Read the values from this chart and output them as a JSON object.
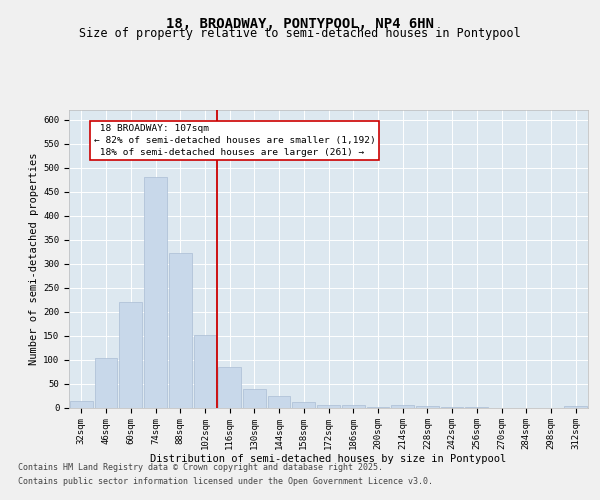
{
  "title": "18, BROADWAY, PONTYPOOL, NP4 6HN",
  "subtitle": "Size of property relative to semi-detached houses in Pontypool",
  "xlabel": "Distribution of semi-detached houses by size in Pontypool",
  "ylabel": "Number of semi-detached properties",
  "categories": [
    "32sqm",
    "46sqm",
    "60sqm",
    "74sqm",
    "88sqm",
    "102sqm",
    "116sqm",
    "130sqm",
    "144sqm",
    "158sqm",
    "172sqm",
    "186sqm",
    "200sqm",
    "214sqm",
    "228sqm",
    "242sqm",
    "256sqm",
    "270sqm",
    "284sqm",
    "298sqm",
    "312sqm"
  ],
  "values": [
    14,
    103,
    220,
    480,
    323,
    152,
    84,
    38,
    25,
    11,
    6,
    5,
    1,
    5,
    4,
    2,
    1,
    0,
    0,
    0,
    4
  ],
  "bar_color": "#c8d8ea",
  "bar_edge_color": "#aabdd4",
  "property_sqm": 107,
  "property_label": "18 BROADWAY: 107sqm",
  "pct_smaller": 82,
  "n_smaller": 1192,
  "pct_larger": 18,
  "n_larger": 261,
  "vline_color": "#cc0000",
  "annotation_box_color": "#cc0000",
  "background_color": "#dde8f0",
  "grid_color": "#ffffff",
  "fig_background": "#f0f0f0",
  "ylim": [
    0,
    620
  ],
  "yticks": [
    0,
    50,
    100,
    150,
    200,
    250,
    300,
    350,
    400,
    450,
    500,
    550,
    600
  ],
  "footer_line1": "Contains HM Land Registry data © Crown copyright and database right 2025.",
  "footer_line2": "Contains public sector information licensed under the Open Government Licence v3.0.",
  "title_fontsize": 10,
  "subtitle_fontsize": 8.5,
  "axis_label_fontsize": 7.5,
  "tick_fontsize": 6.5,
  "annotation_fontsize": 6.8,
  "footer_fontsize": 6.0,
  "vline_index": 5.5
}
